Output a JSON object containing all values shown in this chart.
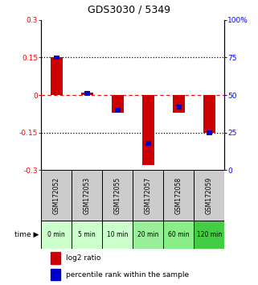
{
  "title": "GDS3030 / 5349",
  "samples": [
    "GSM172052",
    "GSM172053",
    "GSM172055",
    "GSM172057",
    "GSM172058",
    "GSM172059"
  ],
  "time_labels": [
    "0 min",
    "5 min",
    "10 min",
    "20 min",
    "60 min",
    "120 min"
  ],
  "log2_ratios": [
    0.15,
    0.01,
    -0.07,
    -0.28,
    -0.07,
    -0.15
  ],
  "percentile_ranks": [
    75,
    51,
    40,
    18,
    42,
    25
  ],
  "bar_color_red": "#cc0000",
  "bar_color_blue": "#0000cc",
  "ylim_left": [
    -0.3,
    0.3
  ],
  "ylim_right": [
    0,
    100
  ],
  "yticks_left": [
    -0.3,
    -0.15,
    0.0,
    0.15,
    0.3
  ],
  "yticks_right": [
    0,
    25,
    50,
    75,
    100
  ],
  "ytick_labels_left": [
    "-0.3",
    "-0.15",
    "0",
    "0.15",
    "0.3"
  ],
  "ytick_labels_right": [
    "0",
    "25",
    "50",
    "75",
    "100%"
  ],
  "time_bg_colors": [
    "#ccffcc",
    "#ccffcc",
    "#ccffcc",
    "#99ee99",
    "#88ee88",
    "#44cc44"
  ],
  "sample_bg_color": "#cccccc",
  "legend_labels": [
    "log2 ratio",
    "percentile rank within the sample"
  ],
  "bar_width": 0.4,
  "bg_color": "white"
}
